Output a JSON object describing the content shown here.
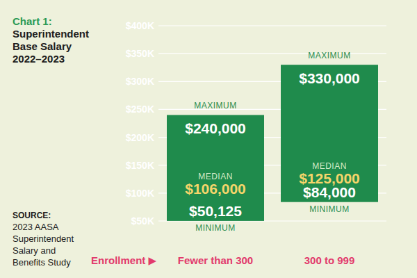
{
  "chart_data": {
    "type": "range_bar",
    "title": "Chart 1:",
    "subtitle": "Superintendent Base Salary 2022–2023",
    "annotations": [
      "SOURCE:",
      "2023 AASA Superintendent Salary and Benefits Study"
    ],
    "x_label": "Enrollment ▶",
    "categories": [
      "Fewer than 300",
      "300 to 999"
    ],
    "color": "#1f8b4c",
    "series": [
      {
        "name": "MAXIMUM",
        "color": "#ffffff",
        "values": [
          240000,
          330000
        ],
        "value_labels": [
          "$240,000",
          "$330,000"
        ]
      },
      {
        "name": "MEDIAN",
        "color": "#f5d56a",
        "values": [
          106000,
          125000
        ],
        "value_labels": [
          "$106,000",
          "$125,000"
        ]
      },
      {
        "name": "MINIMUM",
        "color": "#ffffff",
        "values": [
          50125,
          84000
        ],
        "value_labels": [
          "$50,125",
          "$84,000"
        ]
      }
    ],
    "ylim": [
      50000,
      400000
    ],
    "yticks": [
      {
        "value": 50000,
        "label": "$50K"
      },
      {
        "value": 100000,
        "label": "$100K"
      },
      {
        "value": 150000,
        "label": "$150K"
      },
      {
        "value": 200000,
        "label": "$200K"
      },
      {
        "value": 250000,
        "label": "$250K"
      },
      {
        "value": 300000,
        "label": "$300K"
      },
      {
        "value": 350000,
        "label": "$350K"
      },
      {
        "value": 400000,
        "label": "$400K"
      }
    ],
    "grid": true,
    "data_labels": true
  }
}
